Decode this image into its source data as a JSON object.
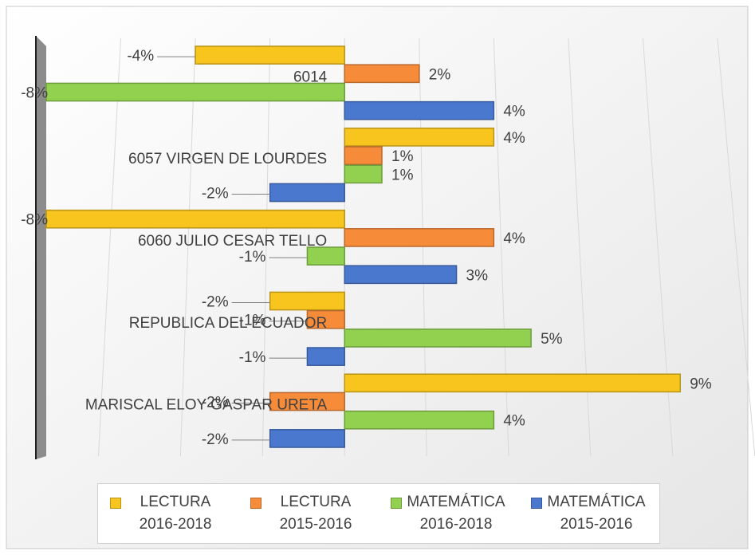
{
  "chart_data": {
    "type": "bar",
    "orientation": "horizontal",
    "categories": [
      "6014",
      "6057 VIRGEN DE LOURDES",
      "6060 JULIO CESAR TELLO",
      "REPUBLICA DEL ECUADOR",
      "MARISCAL ELOY GASPAR URETA"
    ],
    "series": [
      {
        "name": "LECTURA 2016-2018",
        "color": "#f7c51e",
        "values": [
          -4,
          4,
          -8,
          -2,
          9
        ],
        "value_labels": [
          "-4%",
          "4%",
          "-8%",
          "-2%",
          "9%"
        ]
      },
      {
        "name": "LECTURA 2015-2016",
        "color": "#f68b3a",
        "values": [
          2,
          1,
          4,
          -1,
          -2
        ],
        "value_labels": [
          "2%",
          "1%",
          "4%",
          "-1%",
          "-2%"
        ]
      },
      {
        "name": "MATEMÁTICA 2016-2018",
        "color": "#92d050",
        "values": [
          -8,
          1,
          -1,
          5,
          4
        ],
        "value_labels": [
          "-8%",
          "1%",
          "-1%",
          "5%",
          "4%"
        ]
      },
      {
        "name": "MATEMÁTICA 2015-2016",
        "color": "#4a78cf",
        "values": [
          4,
          -2,
          3,
          -1,
          -2
        ],
        "value_labels": [
          "4%",
          "-2%",
          "3%",
          "-1%",
          "-2%"
        ]
      }
    ],
    "xlim": [
      -8,
      10
    ],
    "xticks": [
      -8,
      -6,
      -4,
      -2,
      0,
      2,
      4,
      6,
      8,
      10
    ],
    "grid": true,
    "legend": "bottom"
  }
}
